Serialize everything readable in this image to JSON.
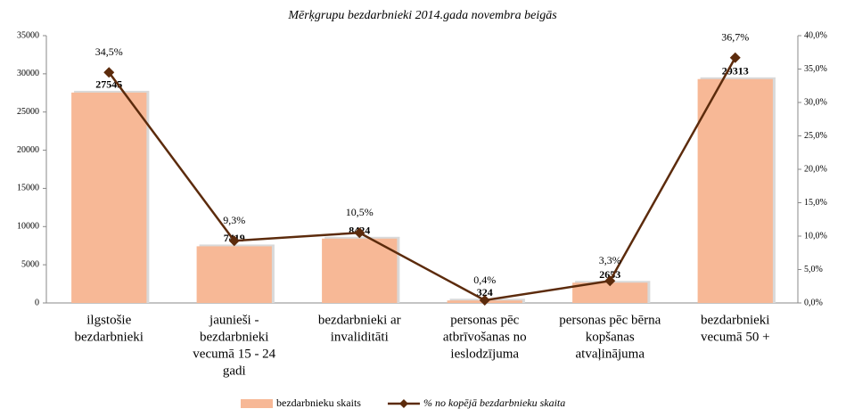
{
  "chart_data": {
    "type": "bar_line",
    "title": "Mērķgrupu bezdarbnieki 2014.gada  novembra  beigās",
    "categories": [
      [
        "ilgstošie",
        "bezdarbnieki"
      ],
      [
        "jaunieši -",
        "bezdarbnieki",
        "vecumā 15 - 24",
        "gadi"
      ],
      [
        "bezdarbnieki ar",
        "invaliditāti"
      ],
      [
        "personas pēc",
        "atbrīvošanas no",
        "ieslodzījuma"
      ],
      [
        "personas pēc bērna",
        "kopšanas",
        "atvaļinājuma"
      ],
      [
        "bezdarbnieki",
        "vecumā 50 +"
      ]
    ],
    "series": [
      {
        "name": "bezdarbnieku skaits",
        "type": "bar",
        "color": "#f7b896",
        "values": [
          27545,
          7419,
          8424,
          324,
          2653,
          29313
        ]
      },
      {
        "name": "% no kopējā bezdarbnieku skaita",
        "type": "line",
        "axis": "y2",
        "color": "#5c2b0c",
        "values": [
          34.5,
          9.3,
          10.5,
          0.4,
          3.3,
          36.7
        ],
        "value_labels": [
          "34,5%",
          "9,3%",
          "10,5%",
          "0,4%",
          "3,3%",
          "36,7%"
        ]
      }
    ],
    "ylim": [
      0,
      35000
    ],
    "yticks": [
      0,
      5000,
      10000,
      15000,
      20000,
      25000,
      30000,
      35000
    ],
    "y2lim": [
      0,
      40
    ],
    "y2ticks": [
      {
        "value": 0,
        "label": "0,0%"
      },
      {
        "value": 5,
        "label": "5,0%"
      },
      {
        "value": 10,
        "label": "10,0%"
      },
      {
        "value": 15,
        "label": "15,0%"
      },
      {
        "value": 20,
        "label": "20,0%"
      },
      {
        "value": 25,
        "label": "25,0%"
      },
      {
        "value": 30,
        "label": "30,0%"
      },
      {
        "value": 35,
        "label": "35,0%"
      },
      {
        "value": 40,
        "label": "40,0%"
      }
    ],
    "legend": "bottom"
  }
}
